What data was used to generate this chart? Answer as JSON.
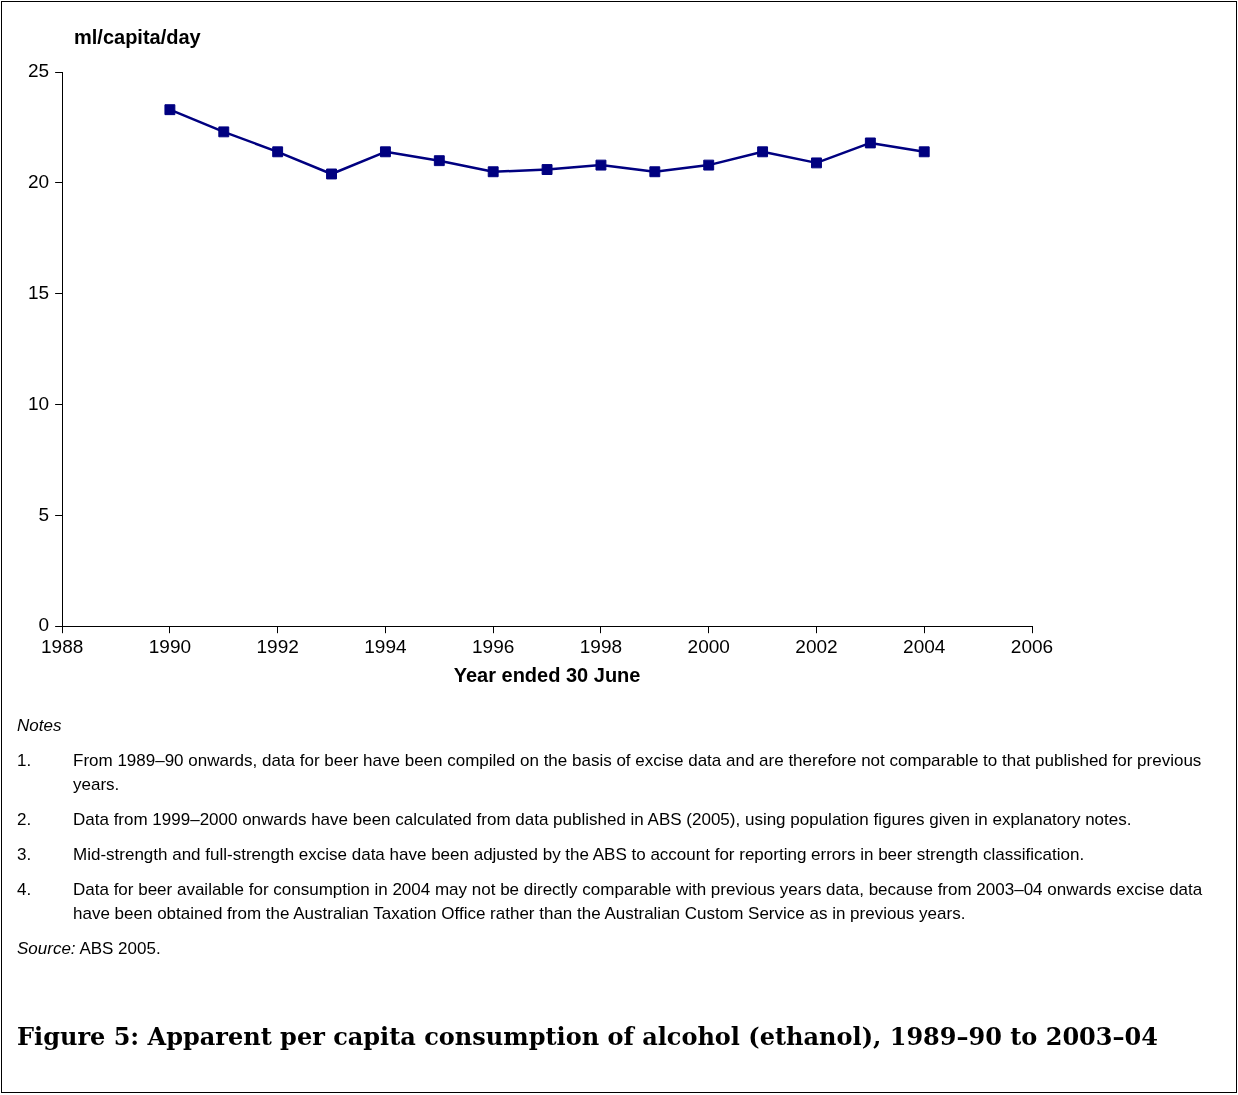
{
  "chart_data": {
    "type": "line",
    "title": "Figure 5: Apparent per capita consumption of alcohol (ethanol), 1989–90 to 2003–04",
    "ylabel": "ml/capita/day",
    "xlabel": "Year ended 30 June",
    "x": [
      1990,
      1991,
      1992,
      1993,
      1994,
      1995,
      1996,
      1997,
      1998,
      1999,
      2000,
      2001,
      2002,
      2003,
      2004
    ],
    "series": [
      {
        "color": "#000080",
        "values": [
          23.3,
          22.3,
          21.4,
          20.4,
          21.4,
          21.0,
          20.5,
          20.6,
          20.8,
          20.5,
          20.8,
          21.4,
          20.9,
          21.8,
          21.4
        ]
      }
    ],
    "xlim": [
      1988,
      2006
    ],
    "xticks": [
      1988,
      1990,
      1992,
      1994,
      1996,
      1998,
      2000,
      2002,
      2004,
      2006
    ],
    "ylim": [
      0,
      25
    ],
    "yticks": [
      0,
      5,
      10,
      15,
      20,
      25
    ],
    "marker": "square",
    "line_style": "solid",
    "legend": false,
    "annotations": [
      "Notes",
      "1. From 1989–90 onwards, data for beer have been compiled on the basis of excise data and are therefore not comparable to that published for previous years.",
      "2. Data from 1999–2000 onwards have been calculated from data published in ABS (2005), using population figures given in explanatory notes.",
      "3. Mid-strength and full-strength excise data have been adjusted by the ABS to account for reporting errors in beer strength classification.",
      "4. Data for beer available for consumption in 2004 may not be directly comparable with previous years data, because from 2003–04 onwards excise data have been obtained from the Australian Taxation Office rather than the Australian Custom Service as in previous years.",
      "Source: ABS 2005."
    ]
  }
}
